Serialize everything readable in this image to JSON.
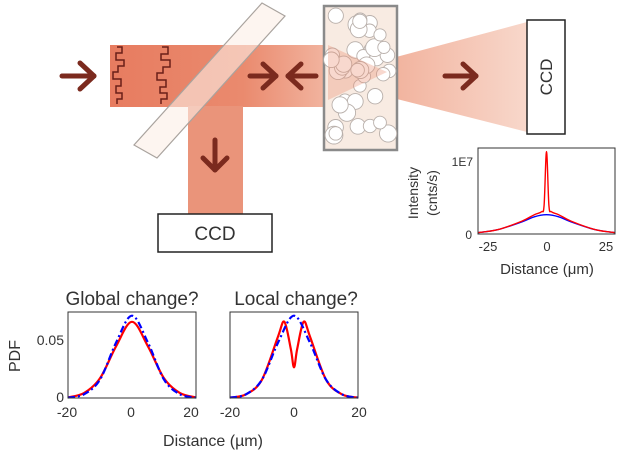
{
  "colors": {
    "beam": "#e8896f",
    "beam_dark": "#e27052",
    "arrow": "#7b2a1e",
    "red_curve": "#ff0000",
    "blue_curve": "#0000ff",
    "sample_border": "#8a8a8a",
    "sample_fill": "#f6e7dc"
  },
  "ccd_right": {
    "label": "CCD"
  },
  "ccd_bottom": {
    "label": "CCD"
  },
  "inset": {
    "ylabel_line1": "Intensity",
    "ylabel_line2": "(cnts/s)",
    "xlabel": "Distance (μm)",
    "yticks": [
      "1E7",
      "0"
    ],
    "xticks": [
      "-25",
      "0",
      "25"
    ]
  },
  "plots": {
    "global_title": "Global change?",
    "local_title": "Local change?",
    "ylabel": "PDF",
    "xlabel": "Distance (µm)",
    "yticks": [
      "0.05",
      "0"
    ],
    "xticks_left": [
      "-20",
      "0",
      "20"
    ],
    "xticks_right": [
      "-20",
      "0",
      "20"
    ]
  },
  "chart_data": [
    {
      "type": "line",
      "title": "",
      "xlabel": "Distance (μm)",
      "ylabel": "Intensity (cnts/s)",
      "xlim": [
        -28,
        28
      ],
      "ylim": [
        0,
        12000000.0
      ],
      "series": [
        {
          "color": "#ff0000",
          "x": [
            -28,
            -20,
            -10,
            -5,
            -2,
            -1,
            0,
            1,
            2,
            5,
            10,
            20,
            28
          ],
          "y": [
            200000,
            600000,
            1800000,
            2700000,
            3100000,
            4000000,
            11500000,
            4000000,
            3100000,
            2700000,
            1800000,
            600000,
            200000
          ]
        },
        {
          "color": "#0000ff",
          "x": [
            -28,
            -20,
            -10,
            -5,
            0,
            5,
            10,
            20,
            28
          ],
          "y": [
            200000,
            600000,
            1700000,
            2400000,
            2700000,
            2400000,
            1700000,
            600000,
            200000
          ]
        }
      ]
    },
    {
      "type": "line",
      "title": "Global change?",
      "xlabel": "Distance (µm)",
      "ylabel": "PDF",
      "xlim": [
        -20,
        20
      ],
      "ylim": [
        0,
        0.07
      ],
      "series": [
        {
          "color": "#ff0000",
          "style": "solid",
          "x": [
            -20,
            -15,
            -10,
            -5,
            0,
            5,
            10,
            15,
            20
          ],
          "y": [
            0.0005,
            0.004,
            0.016,
            0.042,
            0.062,
            0.042,
            0.016,
            0.004,
            0.0005
          ]
        },
        {
          "color": "#0000ff",
          "style": "dash-dot",
          "x": [
            -20,
            -15,
            -10,
            -5,
            0,
            5,
            10,
            15,
            20
          ],
          "y": [
            0.0003,
            0.003,
            0.015,
            0.045,
            0.067,
            0.045,
            0.015,
            0.003,
            0.0003
          ]
        }
      ]
    },
    {
      "type": "line",
      "title": "Local change?",
      "xlabel": "Distance (µm)",
      "ylabel": "PDF",
      "xlim": [
        -20,
        20
      ],
      "ylim": [
        0,
        0.07
      ],
      "series": [
        {
          "color": "#ff0000",
          "style": "solid",
          "x": [
            -20,
            -15,
            -10,
            -5,
            -3,
            -1,
            0,
            1,
            3,
            5,
            10,
            15,
            20
          ],
          "y": [
            0.0003,
            0.003,
            0.015,
            0.05,
            0.062,
            0.04,
            0.025,
            0.04,
            0.062,
            0.05,
            0.015,
            0.003,
            0.0003
          ]
        },
        {
          "color": "#0000ff",
          "style": "dash-dot",
          "x": [
            -20,
            -15,
            -10,
            -5,
            0,
            5,
            10,
            15,
            20
          ],
          "y": [
            0.0003,
            0.003,
            0.015,
            0.045,
            0.067,
            0.045,
            0.015,
            0.003,
            0.0003
          ]
        }
      ]
    }
  ]
}
